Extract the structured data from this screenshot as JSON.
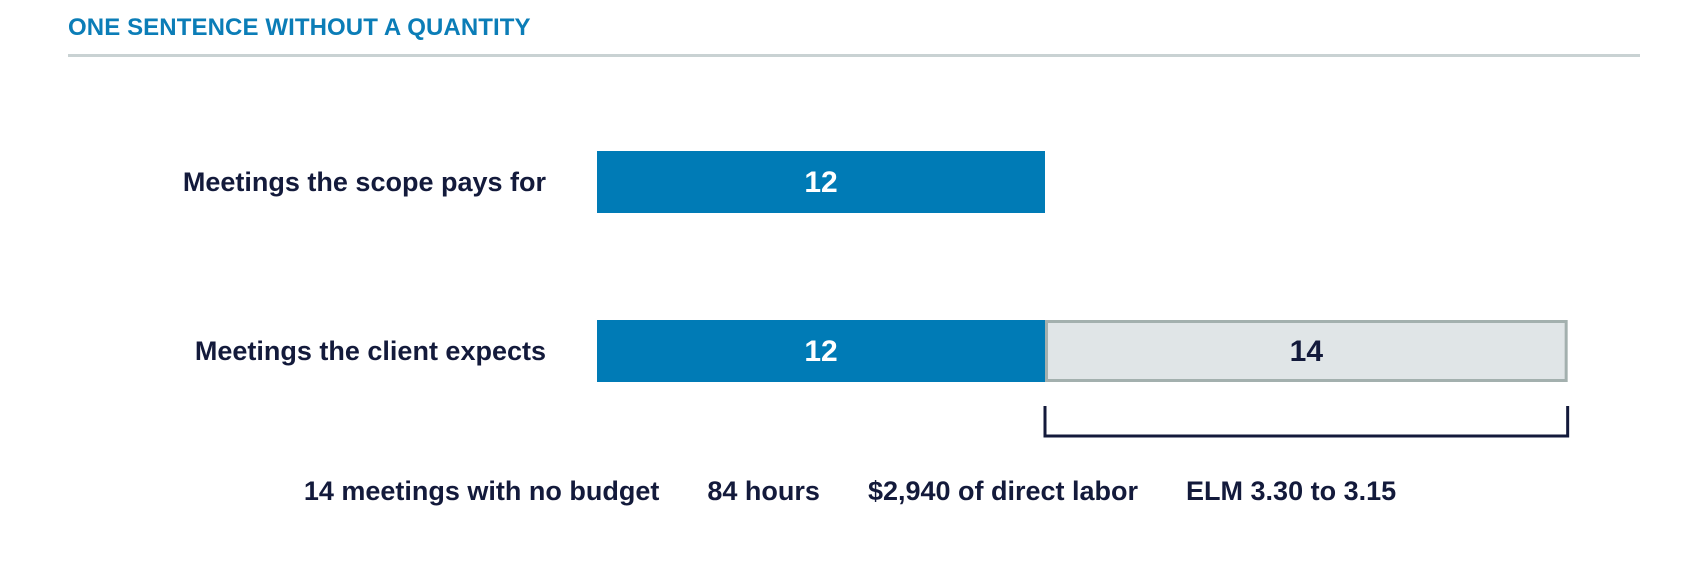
{
  "title": "ONE SENTENCE WITHOUT A QUANTITY",
  "colors": {
    "accent": "#007bb6",
    "gap_fill": "#e0e5e7",
    "gap_border": "#a3b0ae",
    "text_dark": "#131a3b",
    "title": "#0b7db7",
    "rule": "#c9d2d3"
  },
  "chart_data": {
    "type": "bar",
    "orientation": "horizontal",
    "stacked": true,
    "categories": [
      "Meetings the scope pays for",
      "Meetings the client expects"
    ],
    "series": [
      {
        "values": [
          12,
          12
        ],
        "color": "#007bb6"
      },
      {
        "values": [
          0,
          14
        ],
        "color": "#e0e5e7"
      }
    ],
    "data_labels": [
      [
        "12",
        ""
      ],
      [
        "12",
        "14"
      ]
    ],
    "bracket": {
      "category": "Meetings the client expects",
      "series_index": 1
    },
    "grid": false,
    "legend": "none"
  },
  "footer": {
    "items": [
      "14 meetings with no budget",
      "84 hours",
      "$2,940 of direct labor",
      "ELM 3.30 to 3.15"
    ]
  }
}
